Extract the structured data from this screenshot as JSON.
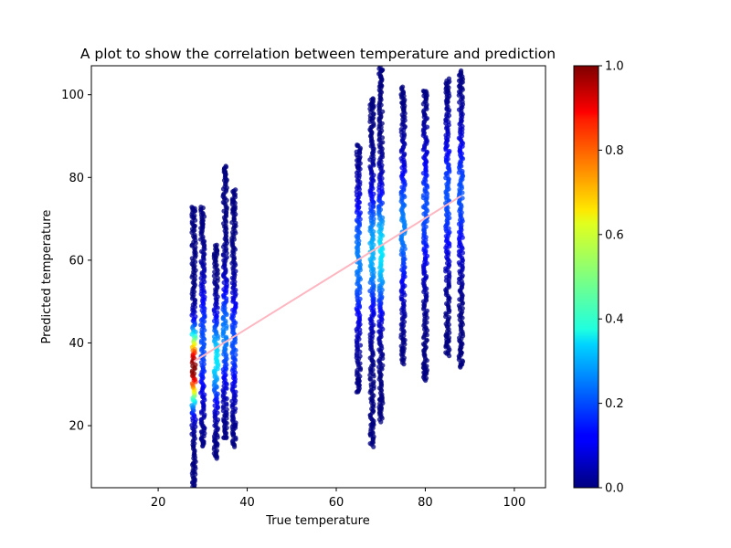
{
  "chart_data": {
    "type": "scatter",
    "title": "A plot to show the correlation between temperature and prediction",
    "xlabel": "True temperature",
    "ylabel": "Predicted temperature",
    "xlim": [
      5,
      107
    ],
    "ylim": [
      5,
      107
    ],
    "x_ticks": [
      20,
      40,
      60,
      80,
      100
    ],
    "y_ticks": [
      20,
      40,
      60,
      80,
      100
    ],
    "grid": false,
    "colormap": "jet",
    "point_alpha": 0.75,
    "colorbar": {
      "vmin": 0,
      "vmax": 1,
      "ticks": [
        "0.0",
        "0.2",
        "0.4",
        "0.6",
        "0.8",
        "1.0"
      ]
    },
    "clusters": [
      {
        "x": 28,
        "y_min": 5,
        "y_max": 73,
        "peak_y": 34,
        "peak_density": 1.0,
        "spread": 8
      },
      {
        "x": 30,
        "y_min": 15,
        "y_max": 73,
        "peak_y": 40,
        "peak_density": 0.2,
        "spread": 14
      },
      {
        "x": 33,
        "y_min": 12,
        "y_max": 64,
        "peak_y": 36,
        "peak_density": 0.35,
        "spread": 10
      },
      {
        "x": 35,
        "y_min": 17,
        "y_max": 83,
        "peak_y": 42,
        "peak_density": 0.25,
        "spread": 12
      },
      {
        "x": 37,
        "y_min": 15,
        "y_max": 77,
        "peak_y": 40,
        "peak_density": 0.2,
        "spread": 12
      },
      {
        "x": 65,
        "y_min": 28,
        "y_max": 88,
        "peak_y": 60,
        "peak_density": 0.25,
        "spread": 15
      },
      {
        "x": 68,
        "y_min": 15,
        "y_max": 99,
        "peak_y": 62,
        "peak_density": 0.3,
        "spread": 14
      },
      {
        "x": 70,
        "y_min": 21,
        "y_max": 107,
        "peak_y": 62,
        "peak_density": 0.35,
        "spread": 14
      },
      {
        "x": 75,
        "y_min": 35,
        "y_max": 102,
        "peak_y": 68,
        "peak_density": 0.25,
        "spread": 15
      },
      {
        "x": 80,
        "y_min": 31,
        "y_max": 101,
        "peak_y": 72,
        "peak_density": 0.2,
        "spread": 15
      },
      {
        "x": 85,
        "y_min": 37,
        "y_max": 104,
        "peak_y": 75,
        "peak_density": 0.2,
        "spread": 15
      },
      {
        "x": 88,
        "y_min": 34,
        "y_max": 106,
        "peak_y": 76,
        "peak_density": 0.2,
        "spread": 15
      }
    ],
    "regression_line": {
      "x": [
        28,
        88
      ],
      "y": [
        35.5,
        75.5
      ],
      "color": "#ffb6c1"
    }
  }
}
